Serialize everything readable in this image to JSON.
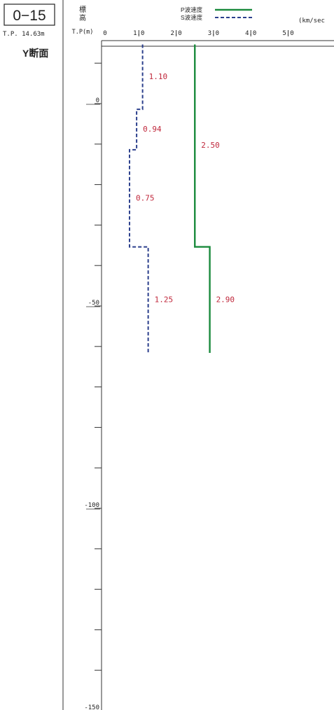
{
  "header": {
    "borehole_id": "0−15",
    "ground_elevation": "T.P. 14.63m",
    "elevation_header_chars": [
      "標",
      "高"
    ],
    "elevation_unit": "T.P(m)",
    "section_label": "Y断面"
  },
  "legend": {
    "p_label": "P波速度",
    "s_label": "S波速度",
    "unit": "(km/sec"
  },
  "colors": {
    "p_wave": "#1a8a3c",
    "s_wave": "#2b3f8c",
    "value_label": "#c0283c",
    "axis": "#333333"
  },
  "chart_data": {
    "type": "line",
    "x_axis": {
      "ticks": [
        "0",
        "1.0",
        "2.0",
        "3.0",
        "4.0",
        "5.0"
      ],
      "tick_values": [
        0,
        1,
        2,
        3,
        4,
        5
      ],
      "range": [
        0,
        6.2
      ]
    },
    "y_axis": {
      "tick_labels": [
        "0",
        "-50",
        "-100",
        "-150"
      ],
      "tick_values": [
        0,
        -50,
        -100,
        -150
      ],
      "minor_step": 10,
      "range": [
        14.63,
        -150
      ]
    },
    "series": [
      {
        "name": "P波速度",
        "style": "solid",
        "segments": [
          {
            "velocity": 2.5,
            "top": 14.63,
            "bottom": -35.4,
            "label": "2.50"
          },
          {
            "velocity": 2.9,
            "top": -35.4,
            "bottom": -61.6,
            "label": "2.90"
          }
        ]
      },
      {
        "name": "S波速度",
        "style": "dashed",
        "segments": [
          {
            "velocity": 1.1,
            "top": 14.63,
            "bottom": -1.4,
            "label": "1.10"
          },
          {
            "velocity": 0.94,
            "top": -1.4,
            "bottom": -11.4,
            "label": "0.94"
          },
          {
            "velocity": 0.75,
            "top": -11.4,
            "bottom": -35.4,
            "label": "0.75"
          },
          {
            "velocity": 1.25,
            "top": -35.4,
            "bottom": -61.6,
            "label": "1.25"
          }
        ]
      }
    ]
  }
}
